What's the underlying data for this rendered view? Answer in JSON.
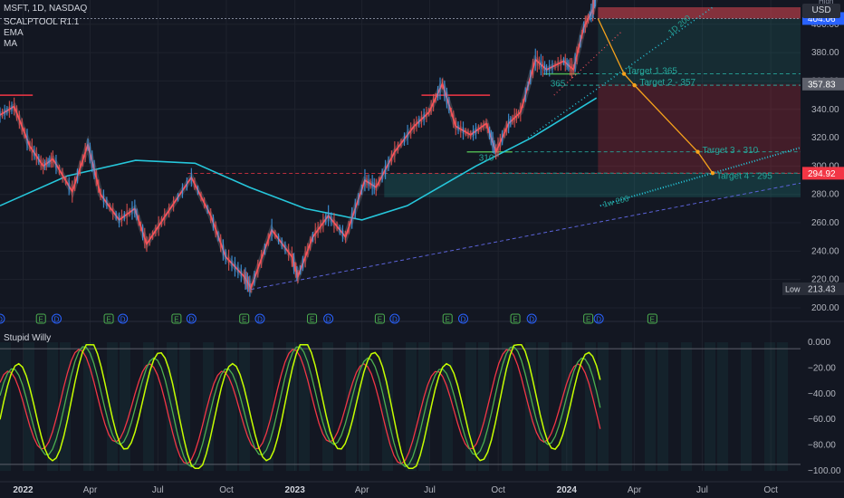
{
  "header": {
    "symbol_line": "MSFT, 1D, NASDAQ",
    "indicators": [
      "SCALPTOOL R1.1",
      "EMA",
      "MA"
    ],
    "currency": "USD",
    "high_tag": "High"
  },
  "oscillator": {
    "name": "Stupid Willy",
    "ticks": [
      "0.000",
      "−20.00",
      "−40.00",
      "−60.00",
      "−80.00",
      "−100.00"
    ],
    "tick_values": [
      0,
      -20,
      -40,
      -60,
      -80,
      -100
    ],
    "ylim": [
      -100,
      0
    ]
  },
  "price_axis": {
    "ticks": [
      "400.00",
      "380.00",
      "360.00",
      "340.00",
      "320.00",
      "300.00",
      "280.00",
      "260.00",
      "240.00",
      "220.00",
      "200.00"
    ],
    "tick_values": [
      400,
      380,
      360,
      340,
      320,
      300,
      280,
      260,
      240,
      220,
      200
    ]
  },
  "price_tags": [
    {
      "label": "404.06",
      "value": 404.06,
      "color": "#2962ff"
    },
    {
      "label": "357.83",
      "value": 357.83,
      "color": "#5d606b"
    },
    {
      "label": "294.92",
      "value": 294.92,
      "color": "#f23645"
    }
  ],
  "low_tag": {
    "label": "Low",
    "value_label": "213.43",
    "value": 213.43
  },
  "time_axis": [
    "2022",
    "Apr",
    "Jul",
    "Oct",
    "2023",
    "Apr",
    "Jul",
    "Oct",
    "2024",
    "Apr",
    "Jul",
    "Oct"
  ],
  "chart_data": {
    "type": "line",
    "title": "MSFT, 1D, NASDAQ",
    "xlabel": "",
    "ylabel": "",
    "ylim": [
      200,
      412
    ],
    "series": [
      {
        "name": "MSFT",
        "x": [
          "2021-12",
          "2022-01",
          "2022-02",
          "2022-03",
          "2022-04",
          "2022-05",
          "2022-06",
          "2022-07",
          "2022-08",
          "2022-09",
          "2022-10",
          "2022-11",
          "2022-12",
          "2023-01",
          "2023-02",
          "2023-03",
          "2023-04",
          "2023-05",
          "2023-06",
          "2023-07",
          "2023-08",
          "2023-09",
          "2023-10",
          "2023-11",
          "2023-12",
          "2024-01",
          "2024-02"
        ],
        "values": [
          336,
          308,
          300,
          313,
          278,
          273,
          256,
          280,
          292,
          238,
          232,
          255,
          242,
          248,
          262,
          285,
          305,
          332,
          340,
          345,
          322,
          313,
          338,
          375,
          374,
          398,
          410
        ]
      }
    ],
    "price_path": [
      {
        "date": "2021-12-01",
        "price": 336
      },
      {
        "date": "2021-12-20",
        "price": 342
      },
      {
        "date": "2022-01-10",
        "price": 314
      },
      {
        "date": "2022-01-28",
        "price": 300
      },
      {
        "date": "2022-02-10",
        "price": 305
      },
      {
        "date": "2022-03-08",
        "price": 282
      },
      {
        "date": "2022-03-29",
        "price": 315
      },
      {
        "date": "2022-04-15",
        "price": 280
      },
      {
        "date": "2022-05-10",
        "price": 262
      },
      {
        "date": "2022-05-31",
        "price": 270
      },
      {
        "date": "2022-06-16",
        "price": 245
      },
      {
        "date": "2022-07-10",
        "price": 264
      },
      {
        "date": "2022-08-15",
        "price": 292
      },
      {
        "date": "2022-09-10",
        "price": 265
      },
      {
        "date": "2022-09-30",
        "price": 236
      },
      {
        "date": "2022-10-25",
        "price": 222
      },
      {
        "date": "2022-11-03",
        "price": 214
      },
      {
        "date": "2022-12-01",
        "price": 255
      },
      {
        "date": "2022-12-28",
        "price": 236
      },
      {
        "date": "2023-01-05",
        "price": 222
      },
      {
        "date": "2023-01-25",
        "price": 250
      },
      {
        "date": "2023-02-15",
        "price": 265
      },
      {
        "date": "2023-03-10",
        "price": 250
      },
      {
        "date": "2023-04-05",
        "price": 290
      },
      {
        "date": "2023-04-20",
        "price": 285
      },
      {
        "date": "2023-05-15",
        "price": 310
      },
      {
        "date": "2023-06-10",
        "price": 328
      },
      {
        "date": "2023-06-30",
        "price": 338
      },
      {
        "date": "2023-07-18",
        "price": 358
      },
      {
        "date": "2023-08-05",
        "price": 328
      },
      {
        "date": "2023-08-25",
        "price": 322
      },
      {
        "date": "2023-09-15",
        "price": 330
      },
      {
        "date": "2023-09-28",
        "price": 310
      },
      {
        "date": "2023-10-15",
        "price": 330
      },
      {
        "date": "2023-10-31",
        "price": 338
      },
      {
        "date": "2023-11-20",
        "price": 375
      },
      {
        "date": "2023-12-05",
        "price": 368
      },
      {
        "date": "2023-12-28",
        "price": 374
      },
      {
        "date": "2024-01-10",
        "price": 368
      },
      {
        "date": "2024-01-24",
        "price": 398
      },
      {
        "date": "2024-02-05",
        "price": 410
      },
      {
        "date": "2024-02-09",
        "price": 420
      }
    ],
    "levels": [
      {
        "label": "Target 1 365",
        "value": 365,
        "color": "#26a69a"
      },
      {
        "label": "Target 2 - 357",
        "value": 357,
        "color": "#26a69a"
      },
      {
        "label": "Target 3 - 310",
        "value": 310,
        "color": "#26a69a"
      },
      {
        "label": "Target 4 - 295",
        "value": 295,
        "color": "#26a69a"
      }
    ],
    "marks": [
      "365",
      "310"
    ],
    "trendline_labels": [
      "1D 200",
      "1w 200"
    ],
    "accent_colors": {
      "price": "#f7525f",
      "ema": "#26c6da",
      "green": "#4caf50",
      "target": "#f7a21b"
    }
  }
}
